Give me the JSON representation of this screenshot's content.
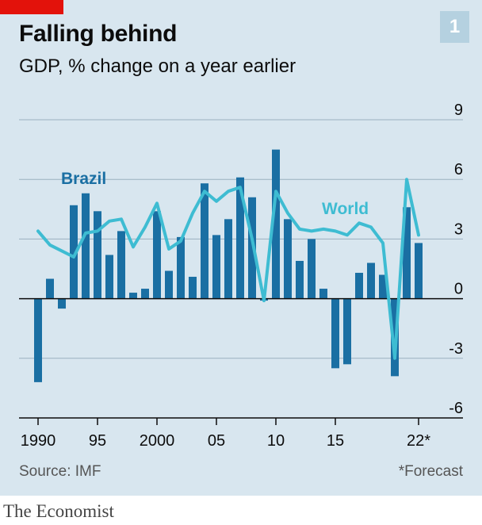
{
  "header": {
    "title": "Falling behind",
    "subtitle": "GDP, % change on a year earlier",
    "badge": "1"
  },
  "footer": {
    "source": "Source: IMF",
    "note": "*Forecast",
    "brand": "The Economist"
  },
  "colors": {
    "brazil": "#1a6fa3",
    "world": "#3ebcd2",
    "background": "#d8e6ef",
    "accent": "#e3120b"
  },
  "chart_data": {
    "type": "bar",
    "ylim": [
      -6,
      9
    ],
    "yticks": [
      9,
      6,
      3,
      0,
      -3,
      -6
    ],
    "ytick_labels": [
      "9",
      "6",
      "3",
      "0",
      "-3",
      "-6"
    ],
    "xticks": [
      1990,
      1995,
      2000,
      2005,
      2010,
      2015,
      2022
    ],
    "xtick_labels": [
      "1990",
      "95",
      "2000",
      "05",
      "10",
      "15",
      "22*"
    ],
    "x": [
      1990,
      1991,
      1992,
      1993,
      1994,
      1995,
      1996,
      1997,
      1998,
      1999,
      2000,
      2001,
      2002,
      2003,
      2004,
      2005,
      2006,
      2007,
      2008,
      2009,
      2010,
      2011,
      2012,
      2013,
      2014,
      2015,
      2016,
      2017,
      2018,
      2019,
      2020,
      2021,
      2022
    ],
    "series": [
      {
        "name": "Brazil",
        "type": "bar",
        "values": [
          -4.2,
          1.0,
          -0.5,
          4.7,
          5.3,
          4.4,
          2.2,
          3.4,
          0.3,
          0.5,
          4.4,
          1.4,
          3.1,
          1.1,
          5.8,
          3.2,
          4.0,
          6.1,
          5.1,
          -0.1,
          7.5,
          4.0,
          1.9,
          3.0,
          0.5,
          -3.5,
          -3.3,
          1.3,
          1.8,
          1.2,
          -3.9,
          4.6,
          2.8
        ]
      },
      {
        "name": "World",
        "type": "line",
        "values": [
          3.4,
          2.7,
          2.4,
          2.1,
          3.3,
          3.4,
          3.9,
          4.0,
          2.6,
          3.6,
          4.8,
          2.5,
          2.9,
          4.3,
          5.4,
          4.9,
          5.4,
          5.6,
          3.0,
          -0.1,
          5.4,
          4.3,
          3.5,
          3.4,
          3.5,
          3.4,
          3.2,
          3.8,
          3.6,
          2.8,
          -3.0,
          6.0,
          3.2
        ]
      }
    ],
    "labels": [
      {
        "series": "Brazil",
        "text": "Brazil"
      },
      {
        "series": "World",
        "text": "World"
      }
    ]
  }
}
